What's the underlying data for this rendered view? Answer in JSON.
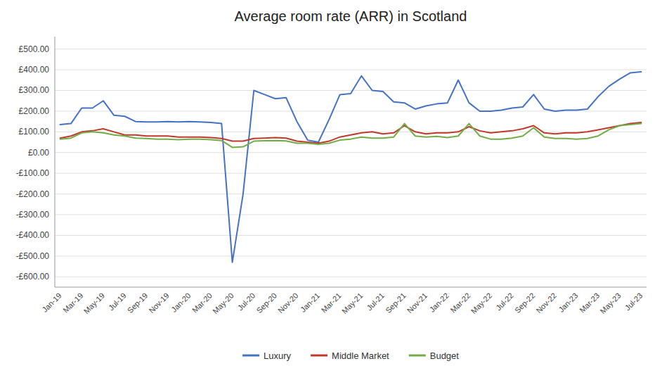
{
  "chart_data": {
    "type": "line",
    "title": "Average room rate (ARR) in Scotland",
    "categories": [
      "Jan-19",
      null,
      "Mar-19",
      null,
      "May-19",
      null,
      "Jul-19",
      null,
      "Sep-19",
      null,
      "Nov-19",
      null,
      "Jan-20",
      null,
      "Mar-20",
      null,
      "May-20",
      null,
      "Jul-20",
      null,
      "Sep-20",
      null,
      "Nov-20",
      null,
      "Jan-21",
      null,
      "Mar-21",
      null,
      "May-21",
      null,
      "Jul-21",
      null,
      "Sep-21",
      null,
      "Nov-21",
      null,
      "Jan-22",
      null,
      "Mar-22",
      null,
      "May-22",
      null,
      "Jul-22",
      null,
      "Sep-22",
      null,
      "Nov-22",
      null,
      "Jan-23",
      null,
      "Mar-23",
      null,
      "May-23",
      null,
      "Jul-23"
    ],
    "series": [
      {
        "name": "Luxury",
        "color": "#4472C4",
        "values": [
          135,
          140,
          215,
          215,
          250,
          180,
          175,
          150,
          148,
          148,
          150,
          148,
          150,
          148,
          145,
          140,
          -530,
          -200,
          300,
          280,
          260,
          265,
          150,
          60,
          50,
          160,
          280,
          285,
          370,
          300,
          295,
          245,
          240,
          210,
          225,
          235,
          240,
          350,
          240,
          200,
          200,
          205,
          215,
          220,
          280,
          210,
          200,
          205,
          205,
          210,
          270,
          320,
          355,
          385,
          390
        ]
      },
      {
        "name": "Middle Market",
        "color": "#C0392B",
        "values": [
          70,
          80,
          100,
          105,
          115,
          100,
          85,
          85,
          80,
          80,
          80,
          75,
          75,
          75,
          72,
          68,
          55,
          55,
          68,
          70,
          72,
          70,
          55,
          50,
          45,
          55,
          75,
          85,
          95,
          100,
          90,
          95,
          130,
          100,
          90,
          95,
          95,
          100,
          125,
          105,
          95,
          100,
          105,
          115,
          130,
          95,
          90,
          95,
          95,
          100,
          110,
          120,
          130,
          140,
          145
        ]
      },
      {
        "name": "Budget",
        "color": "#70AD47",
        "values": [
          65,
          70,
          95,
          100,
          95,
          85,
          80,
          70,
          68,
          65,
          65,
          62,
          65,
          65,
          62,
          58,
          25,
          28,
          55,
          57,
          58,
          56,
          45,
          45,
          40,
          45,
          60,
          65,
          75,
          70,
          70,
          75,
          140,
          80,
          75,
          78,
          72,
          80,
          140,
          80,
          65,
          65,
          70,
          80,
          120,
          75,
          68,
          68,
          65,
          68,
          80,
          110,
          130,
          135,
          140
        ]
      }
    ],
    "ylim": [
      -650,
      560
    ],
    "yticks": [
      {
        "value": -600,
        "label": "-£600.00"
      },
      {
        "value": -500,
        "label": "-£500.00"
      },
      {
        "value": -400,
        "label": "-£400.00"
      },
      {
        "value": -300,
        "label": "-£300.00"
      },
      {
        "value": -200,
        "label": "-£200.00"
      },
      {
        "value": -100,
        "label": "-£100.00"
      },
      {
        "value": 0,
        "label": "£0.00"
      },
      {
        "value": 100,
        "label": "£100.00"
      },
      {
        "value": 200,
        "label": "£200.00"
      },
      {
        "value": 300,
        "label": "£300.00"
      },
      {
        "value": 400,
        "label": "£400.00"
      },
      {
        "value": 500,
        "label": "£500.00"
      }
    ],
    "grid": true,
    "legend": "bottom"
  }
}
